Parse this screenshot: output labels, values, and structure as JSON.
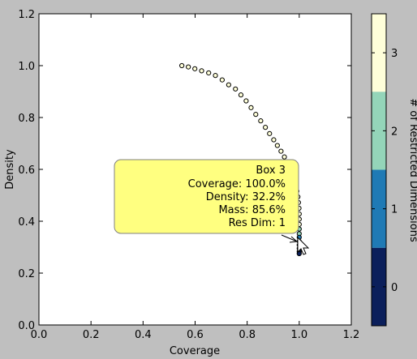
{
  "chart_data": {
    "type": "scatter",
    "xlabel": "Coverage",
    "ylabel": "Density",
    "xlim": [
      0.0,
      1.2
    ],
    "ylim": [
      0.0,
      1.2
    ],
    "x_ticks": [
      "0.0",
      "0.2",
      "0.4",
      "0.6",
      "0.8",
      "1.0",
      "1.2"
    ],
    "y_ticks": [
      "0.0",
      "0.2",
      "0.4",
      "0.6",
      "0.8",
      "1.0",
      "1.2"
    ],
    "grid": false,
    "colorbar": {
      "label": "# of Restricted Dimensions",
      "levels": [
        "0",
        "1",
        "2",
        "3"
      ],
      "colors": [
        "#0b1f5b",
        "#1f7ab5",
        "#94d5b9",
        "#ffffd9"
      ]
    },
    "points": [
      {
        "x": 0.549,
        "y": 1.0,
        "dims": 3
      },
      {
        "x": 0.574,
        "y": 0.995,
        "dims": 3
      },
      {
        "x": 0.599,
        "y": 0.988,
        "dims": 3
      },
      {
        "x": 0.625,
        "y": 0.98,
        "dims": 3
      },
      {
        "x": 0.652,
        "y": 0.972,
        "dims": 3
      },
      {
        "x": 0.678,
        "y": 0.962,
        "dims": 3
      },
      {
        "x": 0.704,
        "y": 0.945,
        "dims": 3
      },
      {
        "x": 0.729,
        "y": 0.926,
        "dims": 3
      },
      {
        "x": 0.755,
        "y": 0.91,
        "dims": 3
      },
      {
        "x": 0.776,
        "y": 0.887,
        "dims": 3
      },
      {
        "x": 0.796,
        "y": 0.864,
        "dims": 3
      },
      {
        "x": 0.815,
        "y": 0.838,
        "dims": 3
      },
      {
        "x": 0.833,
        "y": 0.812,
        "dims": 3
      },
      {
        "x": 0.852,
        "y": 0.787,
        "dims": 3
      },
      {
        "x": 0.87,
        "y": 0.762,
        "dims": 3
      },
      {
        "x": 0.886,
        "y": 0.738,
        "dims": 3
      },
      {
        "x": 0.902,
        "y": 0.714,
        "dims": 3
      },
      {
        "x": 0.916,
        "y": 0.692,
        "dims": 3
      },
      {
        "x": 0.93,
        "y": 0.67,
        "dims": 3
      },
      {
        "x": 0.943,
        "y": 0.648,
        "dims": 3
      },
      {
        "x": 0.954,
        "y": 0.626,
        "dims": 3
      },
      {
        "x": 0.963,
        "y": 0.604,
        "dims": 3
      },
      {
        "x": 0.972,
        "y": 0.582,
        "dims": 3
      },
      {
        "x": 0.98,
        "y": 0.56,
        "dims": 3
      },
      {
        "x": 0.986,
        "y": 0.538,
        "dims": 3
      },
      {
        "x": 0.991,
        "y": 0.516,
        "dims": 3
      },
      {
        "x": 0.995,
        "y": 0.494,
        "dims": 3
      },
      {
        "x": 0.997,
        "y": 0.472,
        "dims": 3
      },
      {
        "x": 0.999,
        "y": 0.45,
        "dims": 3
      },
      {
        "x": 1.0,
        "y": 0.428,
        "dims": 3
      },
      {
        "x": 1.0,
        "y": 0.408,
        "dims": 3
      },
      {
        "x": 1.0,
        "y": 0.388,
        "dims": 3
      },
      {
        "x": 1.0,
        "y": 0.37,
        "dims": 2
      },
      {
        "x": 1.0,
        "y": 0.352,
        "dims": 2
      },
      {
        "x": 1.0,
        "y": 0.338,
        "dims": 1
      },
      {
        "x": 1.0,
        "y": 0.322,
        "dims": 1
      },
      {
        "x": 1.0,
        "y": 0.308,
        "dims": 1
      },
      {
        "x": 1.0,
        "y": 0.295,
        "dims": 1
      },
      {
        "x": 1.0,
        "y": 0.283,
        "dims": 0
      },
      {
        "x": 1.0,
        "y": 0.275,
        "dims": 0
      }
    ],
    "annotation": {
      "lines": [
        "Box 3",
        "Coverage: 100.0%",
        "Density: 32.2%",
        "Mass: 85.6%",
        "Res Dim: 1"
      ],
      "target": {
        "x": 1.0,
        "y": 0.322
      },
      "box_color": "#ffff80"
    }
  }
}
